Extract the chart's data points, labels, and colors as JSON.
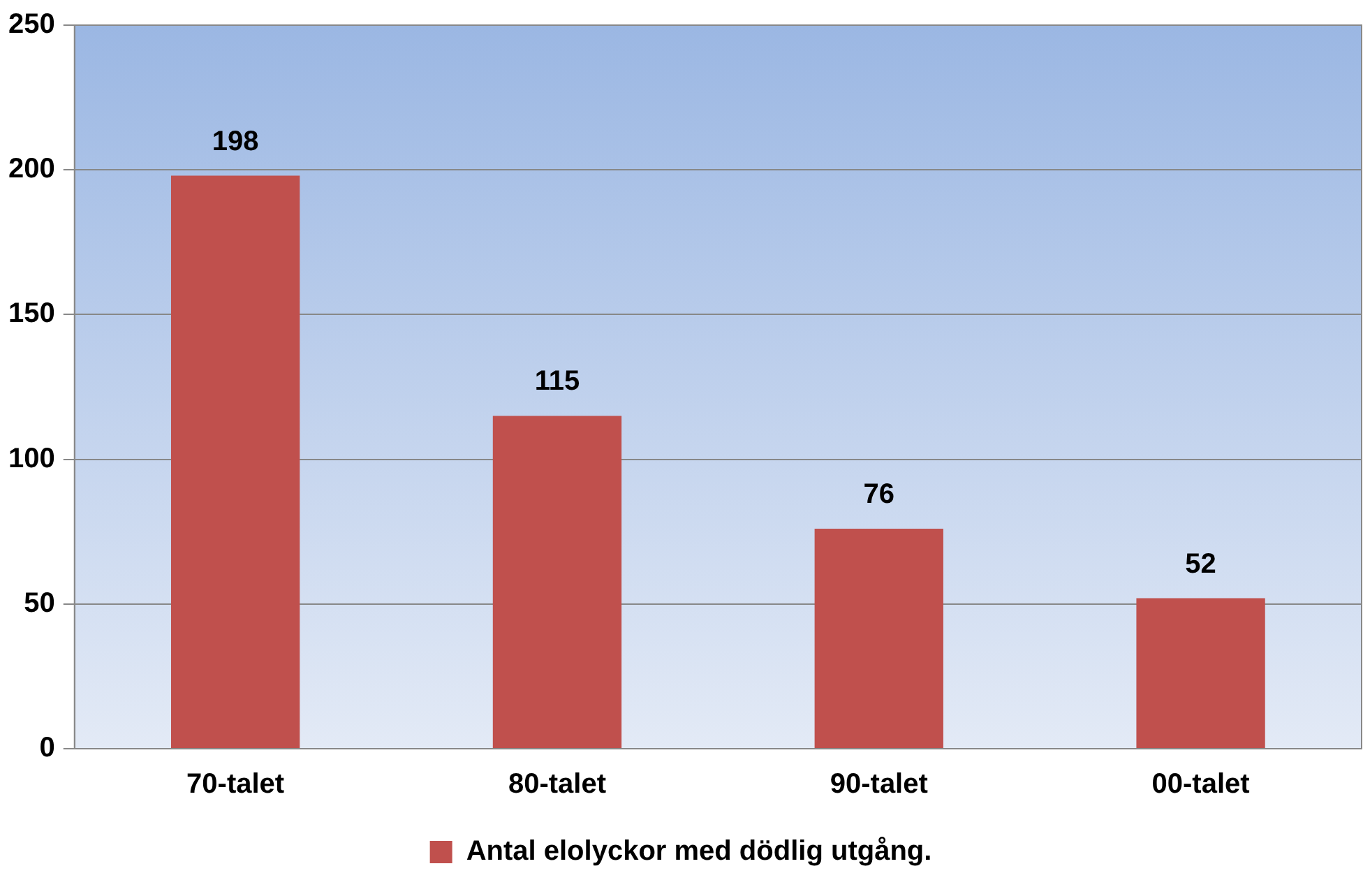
{
  "chart_data": {
    "type": "bar",
    "categories": [
      "70-talet",
      "80-talet",
      "90-talet",
      "00-talet"
    ],
    "series": [
      {
        "name": "Antal elolyckor med dödlig utgång.",
        "color": "#c0504d",
        "values": [
          198,
          115,
          76,
          52
        ]
      }
    ],
    "ylim": [
      0,
      250
    ],
    "yticks": [
      0,
      50,
      100,
      150,
      200,
      250
    ],
    "grid": "y",
    "legend": "bottom",
    "data_labels": true
  }
}
